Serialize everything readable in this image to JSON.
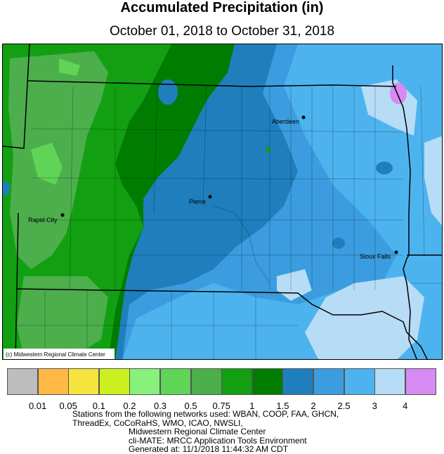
{
  "title": "Accumulated Precipitation (in)",
  "subtitle": "October 01, 2018 to October 31, 2018",
  "map": {
    "copyright": "(c) Midwestern Regional Climate Center",
    "cities": [
      {
        "name": "Aberdeen"
      },
      {
        "name": "Pierre"
      },
      {
        "name": "Rapid City"
      },
      {
        "name": "Sioux Falls"
      }
    ]
  },
  "legend": {
    "colors": [
      "#bdbdbd",
      "#ffb944",
      "#f5e43e",
      "#ccf01f",
      "#88f07c",
      "#5fd456",
      "#4caf4c",
      "#12a012",
      "#007d00",
      "#1f7fbd",
      "#3b9ddf",
      "#4db3ee",
      "#b7dcf6",
      "#d68af2"
    ],
    "labels": [
      "0.01",
      "0.05",
      "0.1",
      "0.2",
      "0.3",
      "0.5",
      "0.75",
      "1",
      "1.5",
      "2",
      "2.5",
      "3",
      "4"
    ]
  },
  "footer": {
    "line1": "Stations from the following networks used: WBAN, COOP, FAA, GHCN,",
    "line2": "ThreadEx, CoCoRaHS, WMO, ICAO, NWSLI,",
    "line3": "Midwestern Regional Climate Center",
    "line4": "cli-MATE: MRCC Application Tools Environment",
    "line5": "Generated at: 11/1/2018 11:44:32 AM CDT"
  }
}
